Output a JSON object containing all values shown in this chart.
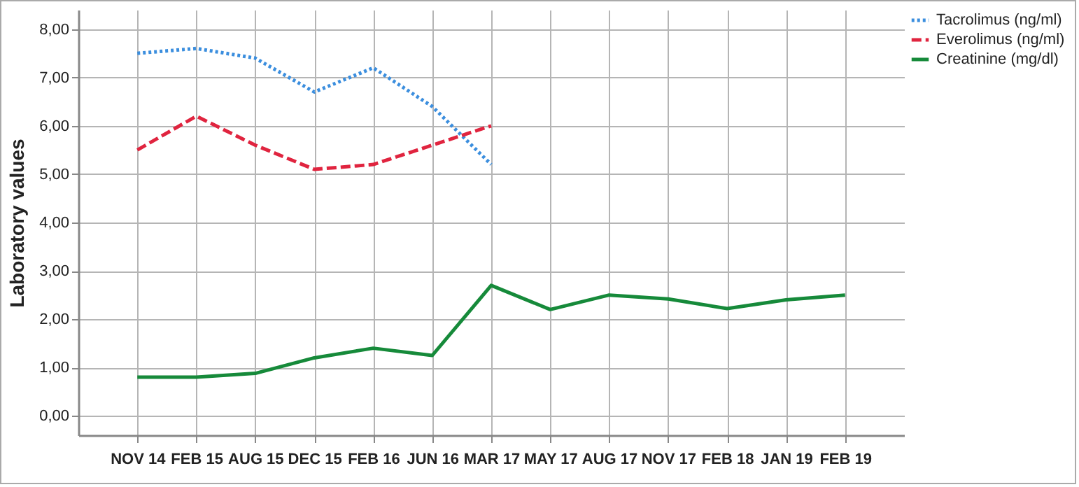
{
  "chart_data": {
    "type": "line",
    "ylabel": "Laboratory values",
    "categories": [
      "NOV 14",
      "FEB 15",
      "AUG 15",
      "DEC 15",
      "FEB 16",
      "JUN 16",
      "MAR 17",
      "MAY 17",
      "AUG 17",
      "NOV 17",
      "FEB 18",
      "JAN 19",
      "FEB 19"
    ],
    "series": [
      {
        "name": "Tacrolimus (ng/ml)",
        "color": "#3b8ede",
        "line_style": "dotted",
        "values": [
          7.5,
          7.6,
          7.4,
          6.7,
          7.2,
          6.4,
          5.2,
          null,
          null,
          null,
          null,
          null,
          null
        ]
      },
      {
        "name": "Everolimus (ng/ml)",
        "color": "#e0243f",
        "line_style": "dashed",
        "values": [
          5.5,
          6.2,
          5.6,
          5.1,
          5.2,
          5.6,
          6.0,
          null,
          null,
          null,
          null,
          null,
          null
        ]
      },
      {
        "name": "Creatinine (mg/dl)",
        "color": "#168a3a",
        "line_style": "solid",
        "values": [
          0.8,
          0.8,
          0.88,
          1.2,
          1.4,
          1.25,
          2.7,
          2.2,
          2.5,
          2.42,
          2.22,
          2.4,
          2.5
        ]
      }
    ],
    "ylim": [
      -0.4,
      8.4
    ],
    "yticks": [
      {
        "value": 0,
        "label": "0,00"
      },
      {
        "value": 1,
        "label": "1,00"
      },
      {
        "value": 2,
        "label": "2,00"
      },
      {
        "value": 3,
        "label": "3,00"
      },
      {
        "value": 4,
        "label": "4,00"
      },
      {
        "value": 5,
        "label": "5,00"
      },
      {
        "value": 6,
        "label": "6,00"
      },
      {
        "value": 7,
        "label": "7,00"
      },
      {
        "value": 8,
        "label": "8,00"
      }
    ],
    "grid": true,
    "legend": "top right",
    "marker": "none"
  }
}
